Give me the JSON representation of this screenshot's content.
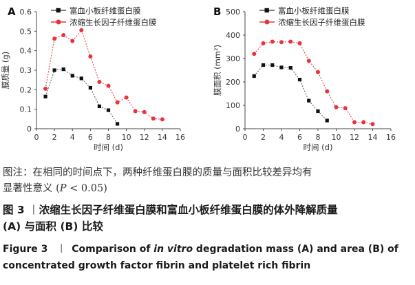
{
  "chart_data": [
    {
      "type": "line",
      "panel": "A",
      "ylabel": "膜质量 (g)",
      "xlabel": "时间 (d)",
      "xlim": [
        0,
        16
      ],
      "ylim": [
        0,
        0.6
      ],
      "x_ticks": [
        "0",
        "2",
        "4",
        "6",
        "8",
        "10",
        "12",
        "14",
        "16"
      ],
      "y_ticks": [
        "0",
        "0.1",
        "0.2",
        "0.3",
        "0.4",
        "0.5",
        "0.6"
      ],
      "legend_position": "top-right",
      "series": [
        {
          "name": "富血小板纤维蛋白膜",
          "color": "#555555",
          "marker": "square",
          "x": [
            1,
            2,
            3,
            4,
            5,
            6,
            7,
            8,
            9
          ],
          "values": [
            0.165,
            0.3,
            0.305,
            0.272,
            0.258,
            0.21,
            0.115,
            0.095,
            0.025
          ]
        },
        {
          "name": "浓缩生长因子纤维蛋白膜",
          "color": "#e8323c",
          "marker": "circle",
          "x": [
            1,
            2,
            3,
            4,
            5,
            6,
            7,
            8,
            9,
            10,
            11,
            12,
            13,
            14
          ],
          "values": [
            0.205,
            0.462,
            0.48,
            0.45,
            0.505,
            0.37,
            0.24,
            0.22,
            0.135,
            0.16,
            0.09,
            0.085,
            0.052,
            0.048
          ]
        }
      ]
    },
    {
      "type": "line",
      "panel": "B",
      "ylabel": "膜面积 (mm²)",
      "xlabel": "时间 (d)",
      "xlim": [
        0,
        16
      ],
      "ylim": [
        0,
        500
      ],
      "x_ticks": [
        "0",
        "2",
        "4",
        "6",
        "8",
        "10",
        "12",
        "14",
        "16"
      ],
      "y_ticks": [
        "0",
        "100",
        "200",
        "300",
        "400",
        "500"
      ],
      "legend_position": "top-right",
      "series": [
        {
          "name": "富血小板纤维蛋白膜",
          "color": "#555555",
          "marker": "square",
          "x": [
            1,
            2,
            3,
            4,
            5,
            6,
            7,
            8,
            9
          ],
          "values": [
            225,
            272,
            272,
            262,
            260,
            210,
            120,
            75,
            35
          ]
        },
        {
          "name": "浓缩生长因子纤维蛋白膜",
          "color": "#e8323c",
          "marker": "circle",
          "x": [
            1,
            2,
            3,
            4,
            5,
            6,
            7,
            8,
            9,
            10,
            11,
            12,
            13,
            14
          ],
          "values": [
            320,
            365,
            372,
            370,
            372,
            365,
            290,
            242,
            160,
            92,
            88,
            28,
            28,
            20
          ]
        }
      ]
    }
  ],
  "note": {
    "line1": "图注：在相同的时间点下，两种纤维蛋白膜的质量与面积比较差异均有",
    "line2_a": "显著性意义 (",
    "line2_p": "P",
    "line2_b": " < 0.05)"
  },
  "figure_cn": {
    "label": "图 3",
    "sep": "丨",
    "line1": "浓缩生长因子纤维蛋白膜和富血小板纤维蛋白膜的体外降解质量",
    "line2": "(A) 与面积 (B) 比较"
  },
  "figure_en": {
    "label": "Figure 3",
    "sep": "丨",
    "t1": "Comparison of ",
    "t2": "in vitro",
    "t3": " degradation mass (A) and area (B) of",
    "line2": "concentrated growth factor fibrin and platelet rich fibrin"
  }
}
